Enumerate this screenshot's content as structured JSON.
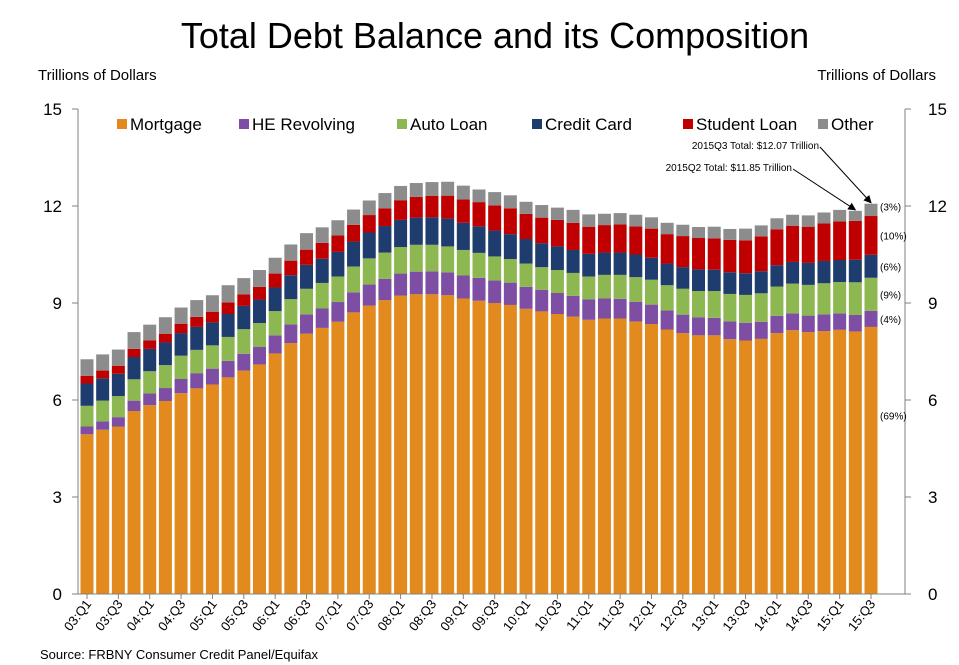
{
  "chart_data": {
    "type": "bar",
    "stacked": true,
    "title": "Total Debt Balance and its Composition",
    "ylabel_left": "Trillions of Dollars",
    "ylabel_right": "Trillions of Dollars",
    "ylim": [
      0,
      15
    ],
    "yticks": [
      0,
      3,
      6,
      9,
      12,
      15
    ],
    "legend_position": "top",
    "categories": [
      "03:Q1",
      "03:Q2",
      "03:Q3",
      "03:Q4",
      "04:Q1",
      "04:Q2",
      "04:Q3",
      "04:Q4",
      "05:Q1",
      "05:Q2",
      "05:Q3",
      "05:Q4",
      "06:Q1",
      "06:Q2",
      "06:Q3",
      "06:Q4",
      "07:Q1",
      "07:Q2",
      "07:Q3",
      "07:Q4",
      "08:Q1",
      "08:Q2",
      "08:Q3",
      "08:Q4",
      "09:Q1",
      "09:Q2",
      "09:Q3",
      "09:Q4",
      "10:Q1",
      "10:Q2",
      "10:Q3",
      "10:Q4",
      "11:Q1",
      "11:Q2",
      "11:Q3",
      "11:Q4",
      "12:Q1",
      "12:Q2",
      "12:Q3",
      "12:Q4",
      "13:Q1",
      "13:Q2",
      "13:Q3",
      "13:Q4",
      "14:Q1",
      "14:Q2",
      "14:Q3",
      "14:Q4",
      "15:Q1",
      "15:Q2",
      "15:Q3"
    ],
    "tick_labels": [
      "03:Q1",
      "03:Q3",
      "04:Q1",
      "04:Q3",
      "05:Q1",
      "05:Q3",
      "06:Q1",
      "06:Q3",
      "07:Q1",
      "07:Q3",
      "08:Q1",
      "08:Q3",
      "09:Q1",
      "09:Q3",
      "10:Q1",
      "10:Q3",
      "11:Q1",
      "11:Q3",
      "12:Q1",
      "12:Q3",
      "13:Q1",
      "13:Q3",
      "14:Q1",
      "14:Q3",
      "15:Q1",
      "15:Q3"
    ],
    "series": [
      {
        "name": "Mortgage",
        "color": "#e28a1d",
        "values": [
          4.94,
          5.08,
          5.18,
          5.66,
          5.84,
          5.97,
          6.21,
          6.36,
          6.48,
          6.7,
          6.91,
          7.1,
          7.44,
          7.76,
          8.05,
          8.23,
          8.42,
          8.71,
          8.92,
          9.09,
          9.23,
          9.27,
          9.27,
          9.24,
          9.14,
          9.07,
          9.0,
          8.94,
          8.82,
          8.74,
          8.66,
          8.58,
          8.48,
          8.52,
          8.52,
          8.43,
          8.35,
          8.18,
          8.07,
          8.0,
          8.0,
          7.88,
          7.84,
          7.89,
          8.07,
          8.16,
          8.1,
          8.13,
          8.17,
          8.12,
          8.26
        ]
      },
      {
        "name": "HE Revolving",
        "color": "#7d4ea3",
        "values": [
          0.24,
          0.26,
          0.29,
          0.32,
          0.36,
          0.4,
          0.44,
          0.47,
          0.49,
          0.51,
          0.52,
          0.54,
          0.56,
          0.58,
          0.6,
          0.6,
          0.61,
          0.62,
          0.65,
          0.66,
          0.68,
          0.7,
          0.71,
          0.71,
          0.71,
          0.71,
          0.7,
          0.69,
          0.68,
          0.67,
          0.65,
          0.64,
          0.63,
          0.62,
          0.61,
          0.61,
          0.6,
          0.59,
          0.57,
          0.56,
          0.54,
          0.55,
          0.55,
          0.53,
          0.53,
          0.52,
          0.51,
          0.52,
          0.51,
          0.51,
          0.5
        ]
      },
      {
        "name": "Auto Loan",
        "color": "#8db751",
        "values": [
          0.64,
          0.64,
          0.65,
          0.66,
          0.69,
          0.71,
          0.72,
          0.72,
          0.72,
          0.74,
          0.76,
          0.74,
          0.75,
          0.78,
          0.79,
          0.79,
          0.79,
          0.8,
          0.81,
          0.81,
          0.82,
          0.83,
          0.82,
          0.8,
          0.79,
          0.77,
          0.74,
          0.73,
          0.72,
          0.7,
          0.71,
          0.71,
          0.71,
          0.73,
          0.74,
          0.76,
          0.77,
          0.78,
          0.8,
          0.81,
          0.83,
          0.85,
          0.86,
          0.88,
          0.91,
          0.92,
          0.95,
          0.96,
          0.97,
          1.01,
          1.02
        ]
      },
      {
        "name": "Credit Card",
        "color": "#1f3c6e",
        "values": [
          0.69,
          0.69,
          0.69,
          0.69,
          0.69,
          0.7,
          0.7,
          0.71,
          0.71,
          0.71,
          0.72,
          0.73,
          0.73,
          0.74,
          0.74,
          0.75,
          0.76,
          0.77,
          0.8,
          0.82,
          0.84,
          0.84,
          0.85,
          0.86,
          0.84,
          0.82,
          0.8,
          0.77,
          0.76,
          0.74,
          0.73,
          0.71,
          0.7,
          0.69,
          0.69,
          0.7,
          0.68,
          0.67,
          0.67,
          0.67,
          0.66,
          0.67,
          0.67,
          0.68,
          0.66,
          0.67,
          0.68,
          0.69,
          0.68,
          0.7,
          0.71
        ]
      },
      {
        "name": "Student Loan",
        "color": "#c00000",
        "values": [
          0.24,
          0.24,
          0.25,
          0.25,
          0.26,
          0.27,
          0.29,
          0.31,
          0.33,
          0.36,
          0.36,
          0.39,
          0.43,
          0.45,
          0.47,
          0.49,
          0.51,
          0.52,
          0.54,
          0.55,
          0.61,
          0.64,
          0.66,
          0.71,
          0.72,
          0.75,
          0.78,
          0.8,
          0.78,
          0.79,
          0.82,
          0.84,
          0.84,
          0.85,
          0.87,
          0.87,
          0.9,
          0.91,
          0.96,
          0.97,
          0.97,
          1.0,
          1.02,
          1.08,
          1.11,
          1.12,
          1.12,
          1.16,
          1.19,
          1.2,
          1.2
        ]
      },
      {
        "name": "Other",
        "color": "#8c8c8c",
        "values": [
          0.51,
          0.5,
          0.5,
          0.52,
          0.49,
          0.51,
          0.5,
          0.52,
          0.51,
          0.53,
          0.5,
          0.52,
          0.49,
          0.5,
          0.51,
          0.48,
          0.47,
          0.47,
          0.45,
          0.47,
          0.44,
          0.43,
          0.43,
          0.43,
          0.43,
          0.39,
          0.41,
          0.4,
          0.37,
          0.39,
          0.38,
          0.4,
          0.38,
          0.35,
          0.35,
          0.36,
          0.35,
          0.35,
          0.35,
          0.34,
          0.36,
          0.34,
          0.36,
          0.34,
          0.34,
          0.34,
          0.35,
          0.34,
          0.36,
          0.31,
          0.38
        ]
      }
    ],
    "composition_labels": [
      "(3%)",
      "(10%)",
      "(6%)",
      "(9%)",
      "(4%)",
      "(69%)"
    ],
    "annotations": [
      {
        "text": "2015Q3 Total: $12.07 Trillion",
        "category": "15:Q3",
        "value": 12.07
      },
      {
        "text": "2015Q2 Total: $11.85 Trillion",
        "category": "15:Q2",
        "value": 11.85
      }
    ],
    "source": "Source: FRBNY Consumer Credit Panel/Equifax"
  }
}
